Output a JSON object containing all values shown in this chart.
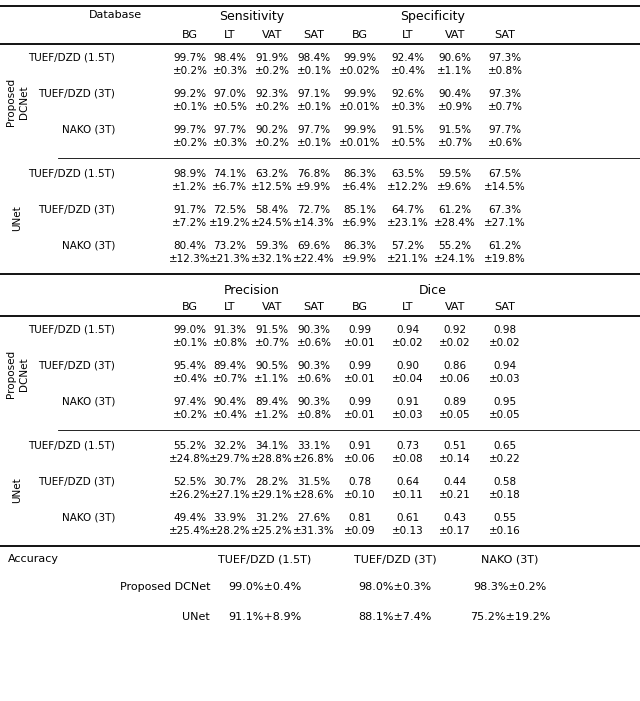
{
  "figsize": [
    6.4,
    7.01
  ],
  "dpi": 100,
  "bg_color": "#ffffff",
  "top_section": {
    "groups": [
      {
        "group_label": "Proposed",
        "subgroup_label": "DCNet",
        "rows": [
          {
            "db": "TUEF/DZD (1.5T)",
            "vals": [
              "99.7%",
              "98.4%",
              "91.9%",
              "98.4%",
              "99.9%",
              "92.4%",
              "90.6%",
              "97.3%"
            ],
            "errs": [
              "±0.2%",
              "±0.3%",
              "±0.2%",
              "±0.1%",
              "±0.02%",
              "±0.4%",
              "±1.1%",
              "±0.8%"
            ]
          },
          {
            "db": "TUEF/DZD (3T)",
            "vals": [
              "99.2%",
              "97.0%",
              "92.3%",
              "97.1%",
              "99.9%",
              "92.6%",
              "90.4%",
              "97.3%"
            ],
            "errs": [
              "±0.1%",
              "±0.5%",
              "±0.2%",
              "±0.1%",
              "±0.01%",
              "±0.3%",
              "±0.9%",
              "±0.7%"
            ]
          },
          {
            "db": "NAKO (3T)",
            "vals": [
              "99.7%",
              "97.7%",
              "90.2%",
              "97.7%",
              "99.9%",
              "91.5%",
              "91.5%",
              "97.7%"
            ],
            "errs": [
              "±0.2%",
              "±0.3%",
              "±0.2%",
              "±0.1%",
              "±0.01%",
              "±0.5%",
              "±0.7%",
              "±0.6%"
            ]
          }
        ]
      },
      {
        "group_label": "UNet",
        "subgroup_label": "",
        "rows": [
          {
            "db": "TUEF/DZD (1.5T)",
            "vals": [
              "98.9%",
              "74.1%",
              "63.2%",
              "76.8%",
              "86.3%",
              "63.5%",
              "59.5%",
              "67.5%"
            ],
            "errs": [
              "±1.2%",
              "±6.7%",
              "±12.5%",
              "±9.9%",
              "±6.4%",
              "±12.2%",
              "±9.6%",
              "±14.5%"
            ]
          },
          {
            "db": "TUEF/DZD (3T)",
            "vals": [
              "91.7%",
              "72.5%",
              "58.4%",
              "72.7%",
              "85.1%",
              "64.7%",
              "61.2%",
              "67.3%"
            ],
            "errs": [
              "±7.2%",
              "±19.2%",
              "±24.5%",
              "±14.3%",
              "±6.9%",
              "±23.1%",
              "±28.4%",
              "±27.1%"
            ]
          },
          {
            "db": "NAKO (3T)",
            "vals": [
              "80.4%",
              "73.2%",
              "59.3%",
              "69.6%",
              "86.3%",
              "57.2%",
              "55.2%",
              "61.2%"
            ],
            "errs": [
              "±12.3%",
              "±21.3%",
              "±32.1%",
              "±22.4%",
              "±9.9%",
              "±21.1%",
              "±24.1%",
              "±19.8%"
            ]
          }
        ]
      }
    ]
  },
  "bottom_section": {
    "groups": [
      {
        "group_label": "Proposed",
        "subgroup_label": "DCNet",
        "rows": [
          {
            "db": "TUEF/DZD (1.5T)",
            "vals": [
              "99.0%",
              "91.3%",
              "91.5%",
              "90.3%",
              "0.99",
              "0.94",
              "0.92",
              "0.98"
            ],
            "errs": [
              "±0.1%",
              "±0.8%",
              "±0.7%",
              "±0.6%",
              "±0.01",
              "±0.02",
              "±0.02",
              "±0.02"
            ]
          },
          {
            "db": "TUEF/DZD (3T)",
            "vals": [
              "95.4%",
              "89.4%",
              "90.5%",
              "90.3%",
              "0.99",
              "0.90",
              "0.86",
              "0.94"
            ],
            "errs": [
              "±0.4%",
              "±0.7%",
              "±1.1%",
              "±0.6%",
              "±0.01",
              "±0.04",
              "±0.06",
              "±0.03"
            ]
          },
          {
            "db": "NAKO (3T)",
            "vals": [
              "97.4%",
              "90.4%",
              "89.4%",
              "90.3%",
              "0.99",
              "0.91",
              "0.89",
              "0.95"
            ],
            "errs": [
              "±0.2%",
              "±0.4%",
              "±1.2%",
              "±0.8%",
              "±0.01",
              "±0.03",
              "±0.05",
              "±0.05"
            ]
          }
        ]
      },
      {
        "group_label": "UNet",
        "subgroup_label": "",
        "rows": [
          {
            "db": "TUEF/DZD (1.5T)",
            "vals": [
              "55.2%",
              "32.2%",
              "34.1%",
              "33.1%",
              "0.91",
              "0.73",
              "0.51",
              "0.65"
            ],
            "errs": [
              "±24.8%",
              "±29.7%",
              "±28.8%",
              "±26.8%",
              "±0.06",
              "±0.08",
              "±0.14",
              "±0.22"
            ]
          },
          {
            "db": "TUEF/DZD (3T)",
            "vals": [
              "52.5%",
              "30.7%",
              "28.2%",
              "31.5%",
              "0.78",
              "0.64",
              "0.44",
              "0.58"
            ],
            "errs": [
              "±26.2%",
              "±27.1%",
              "±29.1%",
              "±28.6%",
              "±0.10",
              "±0.11",
              "±0.21",
              "±0.18"
            ]
          },
          {
            "db": "NAKO (3T)",
            "vals": [
              "49.4%",
              "33.9%",
              "31.2%",
              "27.6%",
              "0.81",
              "0.61",
              "0.43",
              "0.55"
            ],
            "errs": [
              "±25.4%",
              "±28.2%",
              "±25.2%",
              "±31.3%",
              "±0.09",
              "±0.13",
              "±0.17",
              "±0.16"
            ]
          }
        ]
      }
    ]
  },
  "accuracy_section": {
    "label": "Accuracy",
    "cols": [
      "TUEF/DZD (1.5T)",
      "TUEF/DZD (3T)",
      "NAKO (3T)"
    ],
    "rows": [
      {
        "name": "Proposed DCNet",
        "vals": [
          "99.0%±0.4%",
          "98.0%±0.3%",
          "98.3%±0.2%"
        ]
      },
      {
        "name": "UNet",
        "vals": [
          "91.1%+8.9%",
          "88.1%±7.4%",
          "75.2%±19.2%"
        ]
      }
    ]
  },
  "col_labels": [
    "BG",
    "LT",
    "VAT",
    "SAT",
    "BG",
    "LT",
    "VAT",
    "SAT"
  ],
  "top_headers": [
    "Sensitivity",
    "Specificity"
  ],
  "bottom_headers": [
    "Precision",
    "Dice"
  ]
}
